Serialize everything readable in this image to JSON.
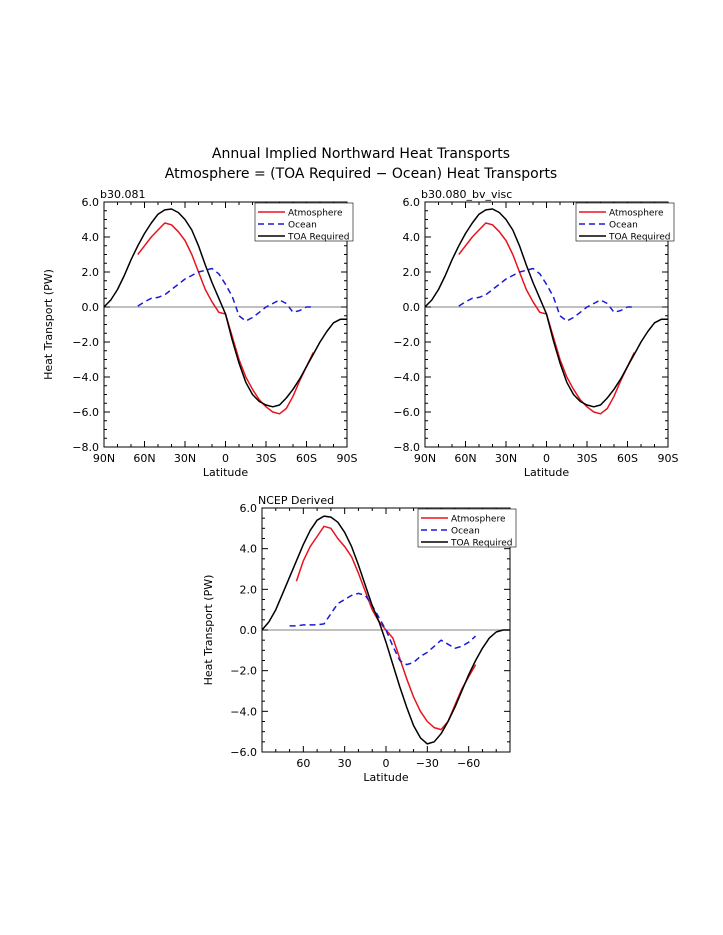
{
  "title_line1": "Annual Implied Northward Heat Transports",
  "title_line2": "Atmosphere = (TOA Required − Ocean) Heat Transports",
  "colors": {
    "atmosphere": "#e8141c",
    "ocean": "#1a1ad8",
    "toa": "#000000",
    "zero_line": "#808080"
  },
  "chart_data": [
    {
      "type": "line",
      "title": "b30.081",
      "xlabel": "Latitude",
      "ylabel": "Heat Transport (PW)",
      "xlim": [
        90,
        -90
      ],
      "ylim": [
        -8.0,
        6.0
      ],
      "yticks": [
        6.0,
        4.0,
        2.0,
        0.0,
        -2.0,
        -4.0,
        -6.0,
        -8.0
      ],
      "ytick_labels": [
        "6.0",
        "4.0",
        "2.0",
        "0.0",
        "−2.0",
        "−4.0",
        "−6.0",
        "−8.0"
      ],
      "xticks": [
        90,
        60,
        30,
        0,
        -30,
        -60,
        -90
      ],
      "xtick_labels": [
        "90N",
        "60N",
        "30N",
        "0",
        "30S",
        "60S",
        "90S"
      ],
      "legend_position": "top-right",
      "series": [
        {
          "name": "Atmosphere",
          "style": "solid",
          "x": [
            65,
            60,
            55,
            50,
            45,
            40,
            35,
            30,
            25,
            20,
            15,
            10,
            5,
            0,
            -5,
            -10,
            -15,
            -20,
            -25,
            -30,
            -35,
            -40,
            -45,
            -50,
            -55,
            -60,
            -65
          ],
          "y": [
            3.0,
            3.5,
            4.0,
            4.4,
            4.8,
            4.7,
            4.3,
            3.8,
            3.0,
            2.0,
            1.0,
            0.3,
            -0.3,
            -0.4,
            -1.7,
            -3.0,
            -4.0,
            -4.7,
            -5.3,
            -5.7,
            -6.0,
            -6.1,
            -5.8,
            -5.1,
            -4.2,
            -3.4,
            -2.6
          ]
        },
        {
          "name": "Ocean",
          "style": "dashed",
          "x": [
            65,
            60,
            55,
            50,
            45,
            40,
            35,
            30,
            25,
            20,
            15,
            10,
            5,
            0,
            -5,
            -10,
            -15,
            -20,
            -25,
            -30,
            -35,
            -40,
            -45,
            -50,
            -55,
            -60,
            -65
          ],
          "y": [
            0.05,
            0.3,
            0.5,
            0.55,
            0.7,
            1.0,
            1.3,
            1.6,
            1.8,
            2.0,
            2.1,
            2.2,
            1.9,
            1.3,
            0.6,
            -0.5,
            -0.8,
            -0.6,
            -0.3,
            0.0,
            0.2,
            0.4,
            0.2,
            -0.3,
            -0.2,
            0.0,
            0.0
          ]
        },
        {
          "name": "TOA Required",
          "style": "solid",
          "x": [
            90,
            85,
            80,
            75,
            70,
            65,
            60,
            55,
            50,
            45,
            40,
            35,
            30,
            25,
            20,
            15,
            10,
            5,
            0,
            -5,
            -10,
            -15,
            -20,
            -25,
            -30,
            -35,
            -40,
            -45,
            -50,
            -55,
            -60,
            -65,
            -70,
            -75,
            -80,
            -85,
            -90
          ],
          "y": [
            0.0,
            0.4,
            1.0,
            1.8,
            2.7,
            3.5,
            4.2,
            4.8,
            5.3,
            5.55,
            5.6,
            5.4,
            5.0,
            4.4,
            3.5,
            2.4,
            1.4,
            0.5,
            -0.4,
            -1.9,
            -3.2,
            -4.3,
            -5.0,
            -5.4,
            -5.6,
            -5.7,
            -5.6,
            -5.2,
            -4.7,
            -4.1,
            -3.4,
            -2.7,
            -2.0,
            -1.4,
            -0.9,
            -0.7,
            -0.7
          ]
        }
      ]
    },
    {
      "type": "line",
      "title": "b30.080_bv_visc",
      "xlabel": "Latitude",
      "ylabel": "",
      "xlim": [
        90,
        -90
      ],
      "ylim": [
        -8.0,
        6.0
      ],
      "yticks": [
        6.0,
        4.0,
        2.0,
        0.0,
        -2.0,
        -4.0,
        -6.0,
        -8.0
      ],
      "ytick_labels": [
        "6.0",
        "4.0",
        "2.0",
        "0.0",
        "−2.0",
        "−4.0",
        "−6.0",
        "−8.0"
      ],
      "xticks": [
        90,
        60,
        30,
        0,
        -30,
        -60,
        -90
      ],
      "xtick_labels": [
        "90N",
        "60N",
        "30N",
        "0",
        "30S",
        "60S",
        "90S"
      ],
      "legend_position": "top-right",
      "series": [
        {
          "name": "Atmosphere",
          "style": "solid",
          "x": [
            65,
            60,
            55,
            50,
            45,
            40,
            35,
            30,
            25,
            20,
            15,
            10,
            5,
            0,
            -5,
            -10,
            -15,
            -20,
            -25,
            -30,
            -35,
            -40,
            -45,
            -50,
            -55,
            -60,
            -65
          ],
          "y": [
            3.0,
            3.5,
            4.0,
            4.4,
            4.8,
            4.7,
            4.3,
            3.8,
            3.0,
            2.0,
            1.0,
            0.3,
            -0.3,
            -0.4,
            -1.7,
            -3.0,
            -4.0,
            -4.7,
            -5.3,
            -5.7,
            -6.0,
            -6.1,
            -5.8,
            -5.1,
            -4.2,
            -3.4,
            -2.6
          ]
        },
        {
          "name": "Ocean",
          "style": "dashed",
          "x": [
            65,
            60,
            55,
            50,
            45,
            40,
            35,
            30,
            25,
            20,
            15,
            10,
            5,
            0,
            -5,
            -10,
            -15,
            -20,
            -25,
            -30,
            -35,
            -40,
            -45,
            -50,
            -55,
            -60,
            -65
          ],
          "y": [
            0.05,
            0.3,
            0.5,
            0.55,
            0.7,
            1.0,
            1.3,
            1.6,
            1.8,
            2.0,
            2.1,
            2.2,
            1.9,
            1.3,
            0.6,
            -0.5,
            -0.8,
            -0.6,
            -0.3,
            0.0,
            0.2,
            0.4,
            0.2,
            -0.3,
            -0.2,
            0.0,
            0.0
          ]
        },
        {
          "name": "TOA Required",
          "style": "solid",
          "x": [
            90,
            85,
            80,
            75,
            70,
            65,
            60,
            55,
            50,
            45,
            40,
            35,
            30,
            25,
            20,
            15,
            10,
            5,
            0,
            -5,
            -10,
            -15,
            -20,
            -25,
            -30,
            -35,
            -40,
            -45,
            -50,
            -55,
            -60,
            -65,
            -70,
            -75,
            -80,
            -85,
            -90
          ],
          "y": [
            0.0,
            0.4,
            1.0,
            1.8,
            2.7,
            3.5,
            4.2,
            4.8,
            5.3,
            5.55,
            5.6,
            5.4,
            5.0,
            4.4,
            3.5,
            2.4,
            1.4,
            0.5,
            -0.4,
            -1.9,
            -3.2,
            -4.3,
            -5.0,
            -5.4,
            -5.6,
            -5.7,
            -5.6,
            -5.2,
            -4.7,
            -4.1,
            -3.4,
            -2.7,
            -2.0,
            -1.4,
            -0.9,
            -0.7,
            -0.7
          ]
        }
      ]
    },
    {
      "type": "line",
      "title": "NCEP Derived",
      "xlabel": "Latitude",
      "ylabel": "Heat Transport (PW)",
      "xlim": [
        90,
        -90
      ],
      "ylim": [
        -6.0,
        6.0
      ],
      "yticks": [
        6.0,
        4.0,
        2.0,
        0.0,
        -2.0,
        -4.0,
        -6.0
      ],
      "ytick_labels": [
        "6.0",
        "4.0",
        "2.0",
        "0.0",
        "−2.0",
        "−4.0",
        "−6.0"
      ],
      "xticks": [
        60,
        30,
        0,
        -30,
        -60
      ],
      "xtick_labels": [
        "60",
        "30",
        "0",
        "−30",
        "−60"
      ],
      "legend_position": "top-right",
      "series": [
        {
          "name": "Atmosphere",
          "style": "solid",
          "x": [
            65,
            60,
            55,
            50,
            45,
            40,
            35,
            30,
            25,
            20,
            15,
            10,
            5,
            0,
            -5,
            -10,
            -15,
            -20,
            -25,
            -30,
            -35,
            -40,
            -45,
            -50,
            -55,
            -60,
            -65
          ],
          "y": [
            2.4,
            3.4,
            4.1,
            4.6,
            5.1,
            5.0,
            4.5,
            4.1,
            3.6,
            2.8,
            1.9,
            1.0,
            0.4,
            0.0,
            -0.4,
            -1.4,
            -2.4,
            -3.3,
            -4.0,
            -4.5,
            -4.8,
            -4.9,
            -4.5,
            -3.7,
            -2.9,
            -2.3,
            -1.7
          ]
        },
        {
          "name": "Ocean",
          "style": "dashed",
          "x": [
            70,
            65,
            60,
            55,
            50,
            45,
            40,
            35,
            30,
            25,
            20,
            15,
            10,
            5,
            0,
            -5,
            -10,
            -15,
            -20,
            -25,
            -30,
            -35,
            -40,
            -45,
            -50,
            -55,
            -60,
            -65
          ],
          "y": [
            0.2,
            0.2,
            0.25,
            0.25,
            0.25,
            0.3,
            0.8,
            1.3,
            1.5,
            1.7,
            1.8,
            1.7,
            1.2,
            0.6,
            0.0,
            -0.8,
            -1.5,
            -1.7,
            -1.6,
            -1.3,
            -1.1,
            -0.8,
            -0.5,
            -0.7,
            -0.9,
            -0.8,
            -0.6,
            -0.3
          ]
        },
        {
          "name": "TOA Required",
          "style": "solid",
          "x": [
            90,
            85,
            80,
            75,
            70,
            65,
            60,
            55,
            50,
            45,
            40,
            35,
            30,
            25,
            20,
            15,
            10,
            5,
            0,
            -5,
            -10,
            -15,
            -20,
            -25,
            -30,
            -35,
            -40,
            -45,
            -50,
            -55,
            -60,
            -65,
            -70,
            -75,
            -80,
            -85,
            -90
          ],
          "y": [
            0.0,
            0.4,
            1.0,
            1.8,
            2.6,
            3.4,
            4.2,
            4.9,
            5.4,
            5.6,
            5.55,
            5.3,
            4.8,
            4.1,
            3.2,
            2.2,
            1.2,
            0.4,
            -0.6,
            -1.7,
            -2.8,
            -3.8,
            -4.7,
            -5.3,
            -5.6,
            -5.5,
            -5.1,
            -4.5,
            -3.8,
            -3.0,
            -2.2,
            -1.5,
            -0.9,
            -0.4,
            -0.1,
            0.0,
            0.0
          ]
        }
      ]
    }
  ]
}
